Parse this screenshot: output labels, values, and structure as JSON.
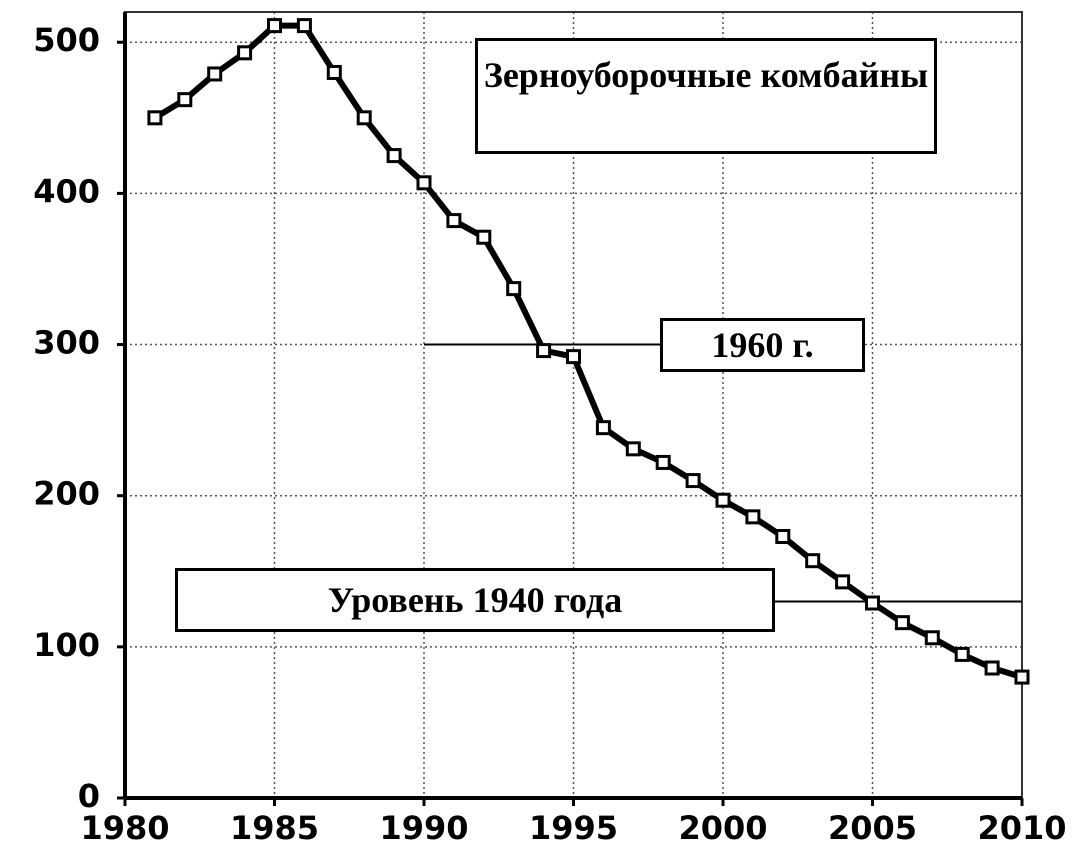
{
  "chart_data": {
    "type": "line",
    "title": "Зерноуборочные комбайны",
    "x": [
      1981,
      1982,
      1983,
      1984,
      1985,
      1986,
      1987,
      1988,
      1989,
      1990,
      1991,
      1992,
      1993,
      1994,
      1995,
      1996,
      1997,
      1998,
      1999,
      2000,
      2001,
      2002,
      2003,
      2004,
      2005,
      2006,
      2007,
      2008,
      2009,
      2010
    ],
    "series": [
      {
        "name": "Зерноуборочные комбайны",
        "color": "#000000",
        "values": [
          450,
          462,
          479,
          493,
          511,
          511,
          480,
          450,
          425,
          407,
          382,
          371,
          337,
          296,
          292,
          245,
          231,
          222,
          210,
          197,
          186,
          173,
          157,
          143,
          129,
          116,
          106,
          95,
          86,
          80
        ]
      }
    ],
    "xlim": [
      1980,
      2010
    ],
    "xticks": [
      1980,
      1985,
      1990,
      1995,
      2000,
      2005,
      2010
    ],
    "ylim": [
      0,
      520
    ],
    "yticks": [
      0,
      100,
      200,
      300,
      400,
      500
    ],
    "grid": true,
    "annotations": [
      {
        "text": "1960 г.",
        "value": 300
      },
      {
        "text": "Уровень 1940 года",
        "value": 130
      }
    ]
  }
}
